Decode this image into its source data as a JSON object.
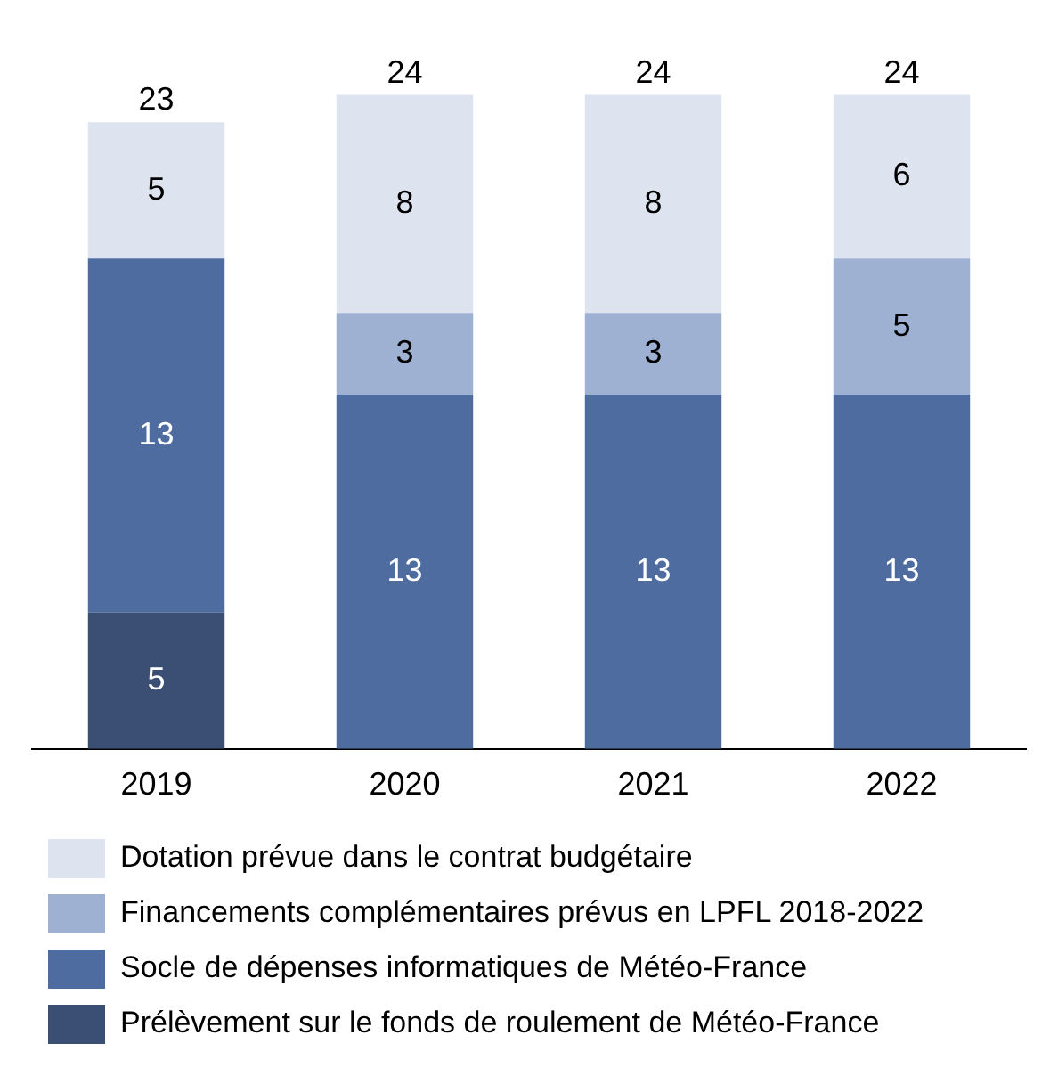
{
  "chart_data": {
    "type": "bar",
    "stacked": true,
    "categories": [
      "2019",
      "2020",
      "2021",
      "2022"
    ],
    "series": [
      {
        "name": "Prélèvement sur le fonds de roulement de Météo-France",
        "color": "#3a4f73",
        "values": [
          5,
          null,
          null,
          null
        ]
      },
      {
        "name": "Socle de dépenses informatiques de Météo-France",
        "color": "#4e6c9f",
        "values": [
          13,
          13,
          13,
          13
        ]
      },
      {
        "name": "Financements complémentaires prévus en LPFL 2018-2022",
        "color": "#9eb1d3",
        "values": [
          null,
          3,
          3,
          5
        ]
      },
      {
        "name": "Dotation prévue dans le contrat budgétaire",
        "color": "#dde4ef",
        "values": [
          5,
          8,
          8,
          6
        ]
      }
    ],
    "data_labels": true,
    "totals": [
      "23",
      "24",
      "24",
      "24"
    ],
    "legend": "bottom",
    "grid": false
  }
}
